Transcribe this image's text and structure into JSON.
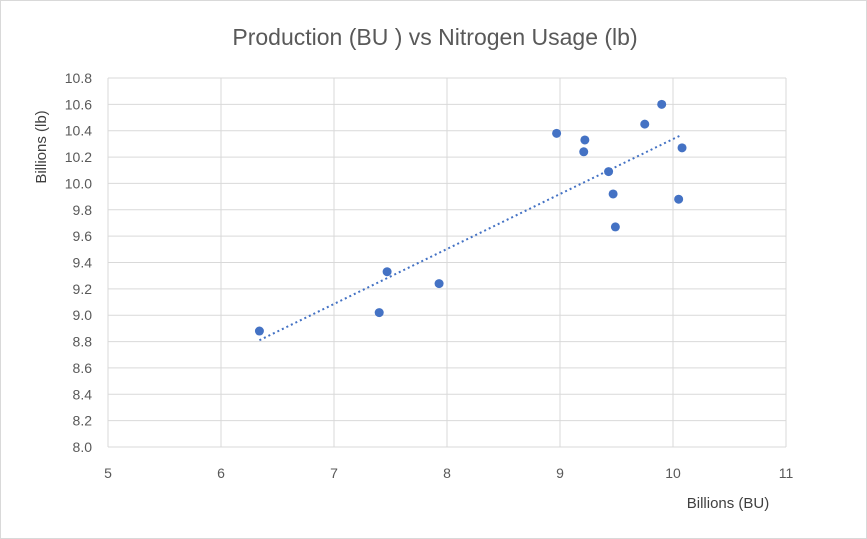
{
  "chart_data": {
    "type": "scatter",
    "title": "Production (BU ) vs Nitrogen Usage (lb)",
    "xlabel": "Billions (BU)",
    "ylabel": "Billions (lb)",
    "xlim": [
      5,
      11
    ],
    "ylim": [
      8.0,
      10.8
    ],
    "x_ticks": [
      "5",
      "6",
      "7",
      "8",
      "9",
      "10",
      "11"
    ],
    "y_ticks": [
      "8.0",
      "8.2",
      "8.4",
      "8.6",
      "8.8",
      "9.0",
      "9.2",
      "9.4",
      "9.6",
      "9.8",
      "10.0",
      "10.2",
      "10.4",
      "10.6",
      "10.8"
    ],
    "grid": true,
    "marker_color": "#4472C4",
    "trendline": {
      "type": "linear",
      "style": "dotted",
      "color": "#4472C4",
      "x_start": 6.34,
      "y_start": 8.81,
      "x_end": 10.08,
      "y_end": 10.37
    },
    "points": [
      {
        "x": 6.34,
        "y": 8.88
      },
      {
        "x": 7.4,
        "y": 9.02
      },
      {
        "x": 7.47,
        "y": 9.33
      },
      {
        "x": 7.93,
        "y": 9.24
      },
      {
        "x": 8.97,
        "y": 10.38
      },
      {
        "x": 9.21,
        "y": 10.24
      },
      {
        "x": 9.22,
        "y": 10.33
      },
      {
        "x": 9.43,
        "y": 10.09
      },
      {
        "x": 9.47,
        "y": 9.92
      },
      {
        "x": 9.49,
        "y": 9.67
      },
      {
        "x": 9.75,
        "y": 10.45
      },
      {
        "x": 9.9,
        "y": 10.6
      },
      {
        "x": 10.05,
        "y": 9.88
      },
      {
        "x": 10.08,
        "y": 10.27
      }
    ]
  }
}
